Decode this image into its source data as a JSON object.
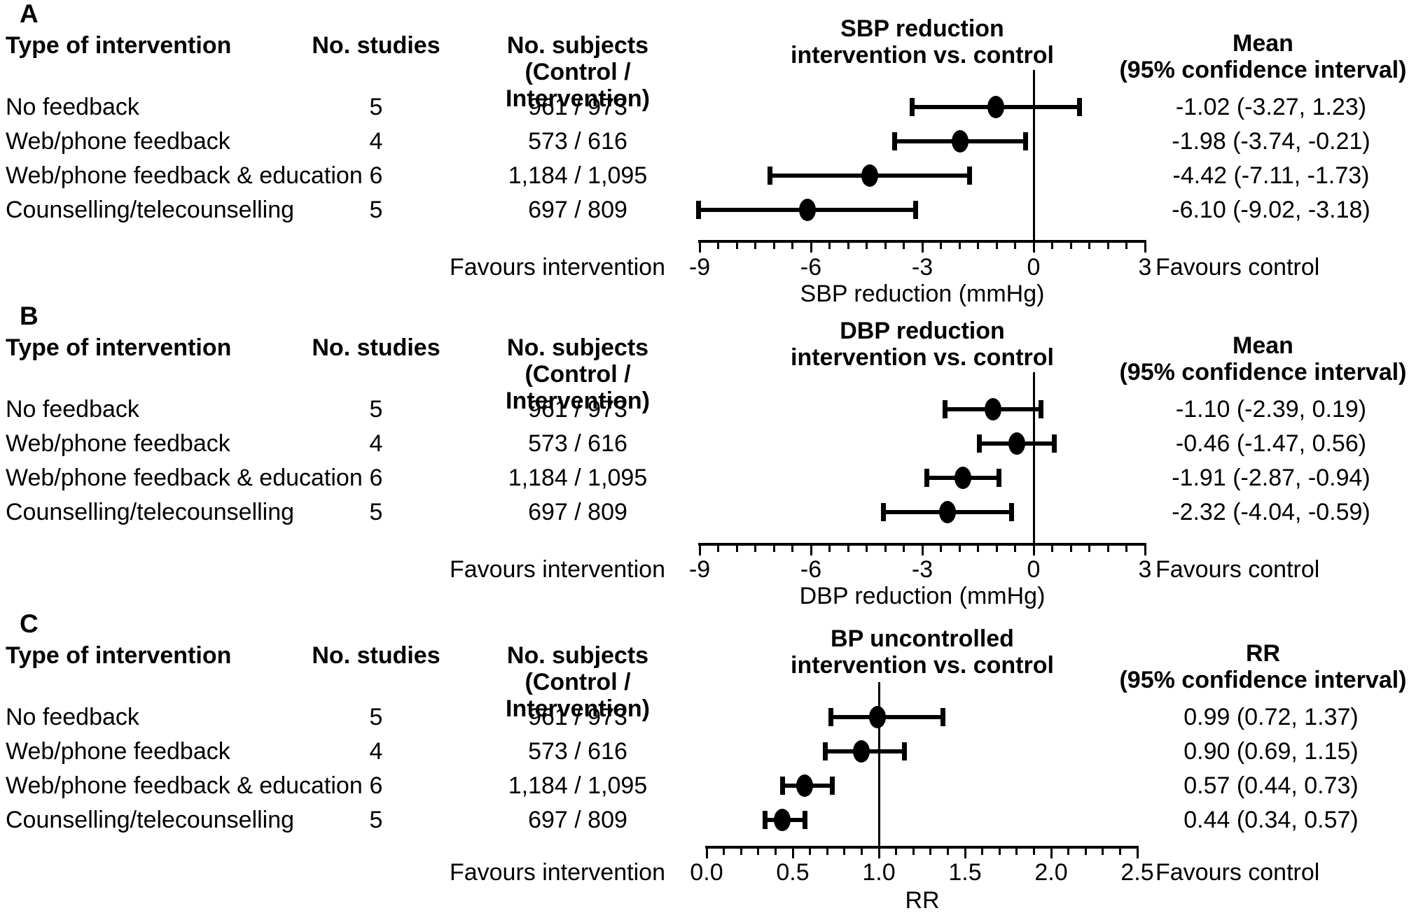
{
  "figure_type": "forest_plot_meta_analysis",
  "ink_color": "#000000",
  "background_color": "#ffffff",
  "chart_data": [
    {
      "type": "forest",
      "panel_label": "A",
      "title_lines": [
        "SBP reduction",
        "intervention vs. control"
      ],
      "columns": {
        "intervention": "Type of intervention",
        "studies": "No. studies",
        "subjects_line1": "No. subjects",
        "subjects_line2": "(Control / Intervention)"
      },
      "effect_header_lines": [
        "Mean",
        "(95% confidence interval)"
      ],
      "favours_left": "Favours intervention",
      "favours_right": "Favours control",
      "xlabel": "SBP reduction (mmHg)",
      "axis": {
        "min": -9,
        "max": 3,
        "major_ticks": [
          -9,
          -6,
          -3,
          0,
          3
        ],
        "major_tick_labels": [
          "-9",
          "-6",
          "-3",
          "0",
          "3"
        ],
        "minor_step": 0.5,
        "reference_line": 0
      },
      "rows": [
        {
          "intervention": "No feedback",
          "studies": "5",
          "subjects": "961 / 973",
          "estimate": -1.02,
          "ci_low": -3.27,
          "ci_high": 1.23,
          "effect_label": "-1.02 (-3.27, 1.23)"
        },
        {
          "intervention": "Web/phone feedback",
          "studies": "4",
          "subjects": "573 / 616",
          "estimate": -1.98,
          "ci_low": -3.74,
          "ci_high": -0.21,
          "effect_label": "-1.98 (-3.74, -0.21)"
        },
        {
          "intervention": "Web/phone feedback & education",
          "studies": "6",
          "subjects": "1,184 / 1,095",
          "estimate": -4.42,
          "ci_low": -7.11,
          "ci_high": -1.73,
          "effect_label": "-4.42 (-7.11, -1.73)"
        },
        {
          "intervention": "Counselling/telecounselling",
          "studies": "5",
          "subjects": "697 / 809",
          "estimate": -6.1,
          "ci_low": -9.02,
          "ci_high": -3.18,
          "effect_label": "-6.10 (-9.02, -3.18)"
        }
      ]
    },
    {
      "type": "forest",
      "panel_label": "B",
      "title_lines": [
        "DBP reduction",
        "intervention vs. control"
      ],
      "columns": {
        "intervention": "Type of intervention",
        "studies": "No. studies",
        "subjects_line1": "No. subjects",
        "subjects_line2": "(Control / Intervention)"
      },
      "effect_header_lines": [
        "Mean",
        "(95% confidence interval)"
      ],
      "favours_left": "Favours intervention",
      "favours_right": "Favours control",
      "xlabel": "DBP reduction (mmHg)",
      "axis": {
        "min": -9,
        "max": 3,
        "major_ticks": [
          -9,
          -6,
          -3,
          0,
          3
        ],
        "major_tick_labels": [
          "-9",
          "-6",
          "-3",
          "0",
          "3"
        ],
        "minor_step": 0.5,
        "reference_line": 0
      },
      "rows": [
        {
          "intervention": "No feedback",
          "studies": "5",
          "subjects": "961 / 973",
          "estimate": -1.1,
          "ci_low": -2.39,
          "ci_high": 0.19,
          "effect_label": "-1.10 (-2.39, 0.19)"
        },
        {
          "intervention": "Web/phone feedback",
          "studies": "4",
          "subjects": "573 / 616",
          "estimate": -0.46,
          "ci_low": -1.47,
          "ci_high": 0.56,
          "effect_label": "-0.46 (-1.47, 0.56)"
        },
        {
          "intervention": "Web/phone feedback & education",
          "studies": "6",
          "subjects": "1,184 / 1,095",
          "estimate": -1.91,
          "ci_low": -2.87,
          "ci_high": -0.94,
          "effect_label": "-1.91 (-2.87, -0.94)"
        },
        {
          "intervention": "Counselling/telecounselling",
          "studies": "5",
          "subjects": "697 / 809",
          "estimate": -2.32,
          "ci_low": -4.04,
          "ci_high": -0.59,
          "effect_label": "-2.32 (-4.04, -0.59)"
        }
      ]
    },
    {
      "type": "forest",
      "panel_label": "C",
      "title_lines": [
        "BP uncontrolled",
        "intervention vs. control"
      ],
      "columns": {
        "intervention": "Type of intervention",
        "studies": "No. studies",
        "subjects_line1": "No. subjects",
        "subjects_line2": "(Control / Intervention)"
      },
      "effect_header_lines": [
        "RR",
        "(95% confidence interval)"
      ],
      "favours_left": "Favours intervention",
      "favours_right": "Favours control",
      "xlabel": "RR",
      "axis": {
        "min": 0,
        "max": 2.5,
        "major_ticks": [
          0,
          0.5,
          1.0,
          1.5,
          2.0,
          2.5
        ],
        "major_tick_labels": [
          "0.0",
          "0.5",
          "1.0",
          "1.5",
          "2.0",
          "2.5"
        ],
        "minor_step": 0.1,
        "reference_line": 1.0
      },
      "rows": [
        {
          "intervention": "No feedback",
          "studies": "5",
          "subjects": "961 / 973",
          "estimate": 0.99,
          "ci_low": 0.72,
          "ci_high": 1.37,
          "effect_label": "0.99 (0.72, 1.37)"
        },
        {
          "intervention": "Web/phone feedback",
          "studies": "4",
          "subjects": "573 / 616",
          "estimate": 0.9,
          "ci_low": 0.69,
          "ci_high": 1.15,
          "effect_label": "0.90 (0.69, 1.15)"
        },
        {
          "intervention": "Web/phone feedback & education",
          "studies": "6",
          "subjects": "1,184 / 1,095",
          "estimate": 0.57,
          "ci_low": 0.44,
          "ci_high": 0.73,
          "effect_label": "0.57 (0.44, 0.73)"
        },
        {
          "intervention": "Counselling/telecounselling",
          "studies": "5",
          "subjects": "697 / 809",
          "estimate": 0.44,
          "ci_low": 0.34,
          "ci_high": 0.57,
          "effect_label": "0.44 (0.34, 0.57)"
        }
      ]
    }
  ]
}
